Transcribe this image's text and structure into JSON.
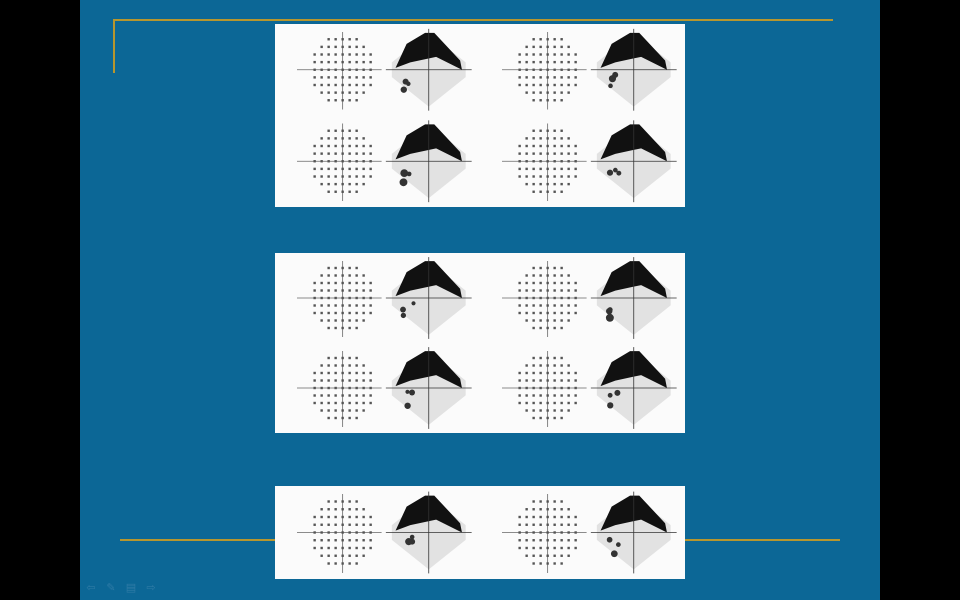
{
  "slide": {
    "background": "#0c6796",
    "accent_line_color": "#b6962e",
    "panel_background": "#fbfbfb",
    "mark_color": "#111111"
  },
  "panels": [
    {
      "name": "visual-field-panel-1",
      "rows": 2,
      "cols": 2
    },
    {
      "name": "visual-field-panel-2",
      "rows": 2,
      "cols": 2
    },
    {
      "name": "visual-field-panel-3",
      "rows": 1,
      "cols": 2
    }
  ],
  "nav": {
    "buttons": [
      {
        "name": "previous-slide-icon",
        "glyph": "⇦"
      },
      {
        "name": "pen-tool-icon",
        "glyph": "✎"
      },
      {
        "name": "slide-menu-icon",
        "glyph": "▤"
      },
      {
        "name": "next-slide-icon",
        "glyph": "⇨"
      }
    ]
  }
}
